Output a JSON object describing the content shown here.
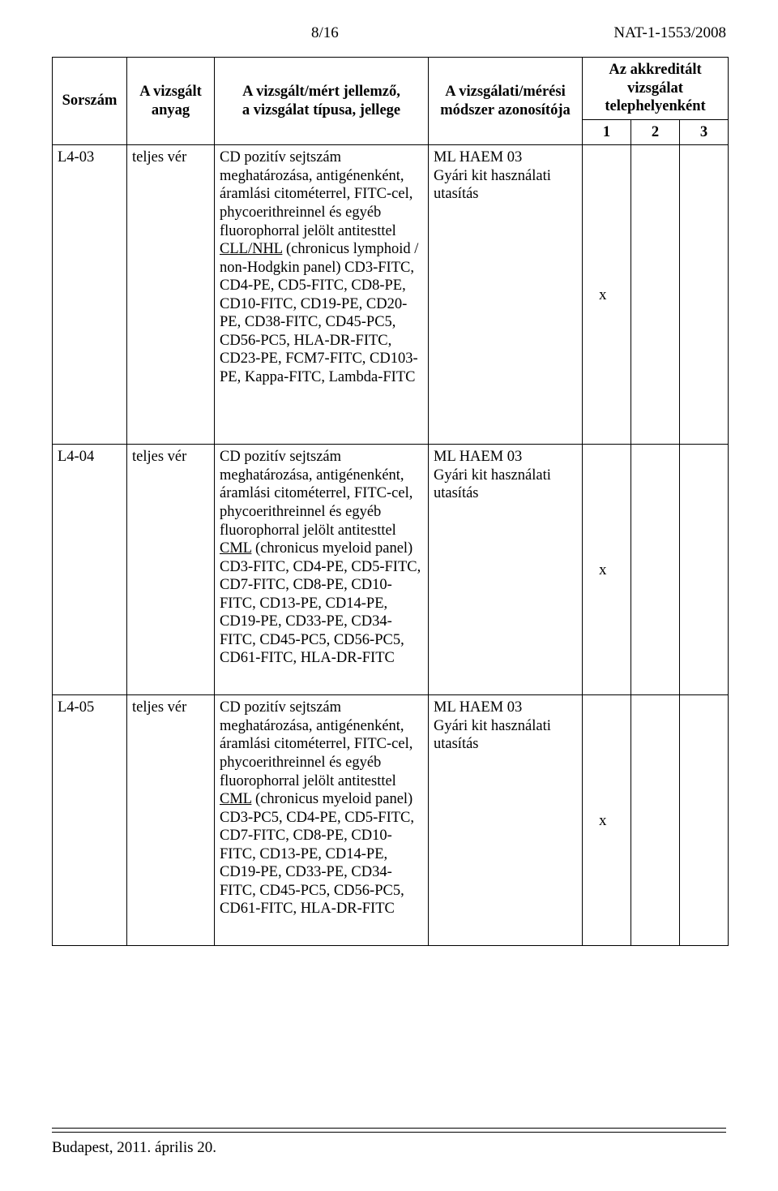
{
  "header": {
    "page_no": "8/16",
    "doc_id": "NAT-1-1553/2008"
  },
  "table": {
    "head": {
      "sorszam": "Sorszám",
      "anyag_line1": "A vizsgált",
      "anyag_line2": "anyag",
      "jellemzo_line1": "A vizsgált/mért jellemző,",
      "jellemzo_line2": "a vizsgálat típusa, jellege",
      "modszer_line1": "A vizsgálati/mérési",
      "modszer_line2": "módszer azonosítója",
      "akkred_line1": "Az akkreditált",
      "akkred_line2": "vizsgálat",
      "akkred_line3": "telephelyenként",
      "n1": "1",
      "n2": "2",
      "n3": "3"
    },
    "rows": [
      {
        "sorszam": "L4-03",
        "anyag": "teljes vér",
        "jellemzo_pre": "CD pozitív sejtszám meghatározása, antigénenként, áramlási citométerrel, FITC-cel, phycoerithreinnel és egyéb fluorophorral jelölt antitesttel",
        "jellemzo_uline": "CLL/NHL",
        "jellemzo_post": " (chronicus lymphoid / non-Hodgkin panel) CD3-FITC, CD4-PE, CD5-FITC, CD8-PE, CD10-FITC, CD19-PE, CD20-PE, CD38-FITC, CD45-PC5, CD56-PC5, HLA-DR-FITC, CD23-PE, FCM7-FITC, CD103-PE, Kappa-FITC, Lambda-FITC",
        "modszer_line1": "ML HAEM 03",
        "modszer_line2": "Gyári kit használati",
        "modszer_line3": "utasítás",
        "mark": "x",
        "mark_class": "mark-inner"
      },
      {
        "sorszam": "L4-04",
        "anyag": "teljes vér",
        "jellemzo_pre": "CD pozitív sejtszám meghatározása, antigénenként, áramlási citométerrel, FITC-cel, phycoerithreinnel és egyéb fluorophorral jelölt antitesttel",
        "jellemzo_uline": "CML",
        "jellemzo_post": " (chronicus myeloid panel) CD3-FITC, CD4-PE, CD5-FITC, CD7-FITC, CD8-PE, CD10-FITC, CD13-PE, CD14-PE, CD19-PE, CD33-PE, CD34-FITC, CD45-PC5, CD56-PC5, CD61-FITC, HLA-DR-FITC",
        "modszer_line1": "ML HAEM 03",
        "modszer_line2": "Gyári kit használati",
        "modszer_line3": "utasítás",
        "mark": "x",
        "mark_class": "mark-inner short"
      },
      {
        "sorszam": "L4-05",
        "anyag": "teljes vér",
        "jellemzo_pre": "CD pozitív sejtszám meghatározása, antigénenként, áramlási citométerrel, FITC-cel, phycoerithreinnel és egyéb fluorophorral jelölt antitesttel",
        "jellemzo_uline": "CML",
        "jellemzo_post": " (chronicus myeloid panel) CD3-PC5, CD4-PE, CD5-FITC, CD7-FITC, CD8-PE, CD10-FITC, CD13-PE, CD14-PE, CD19-PE, CD33-PE, CD34-FITC, CD45-PC5, CD56-PC5, CD61-FITC, HLA-DR-FITC",
        "modszer_line1": "ML HAEM 03",
        "modszer_line2": "Gyári kit használati",
        "modszer_line3": "utasítás",
        "mark": "x",
        "mark_class": "mark-inner short"
      }
    ]
  },
  "footer": "Budapest, 2011. április 20."
}
